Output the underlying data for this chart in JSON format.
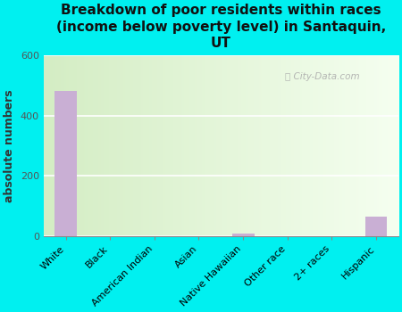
{
  "title": "Breakdown of poor residents within races\n(income below poverty level) in Santaquin,\nUT",
  "ylabel": "absolute numbers",
  "categories": [
    "White",
    "Black",
    "American Indian",
    "Asian",
    "Native Hawaiian",
    "Other race",
    "2+ races",
    "Hispanic"
  ],
  "values": [
    480,
    0,
    0,
    0,
    8,
    0,
    0,
    65
  ],
  "bar_color": "#c9afd4",
  "ylim": [
    0,
    600
  ],
  "yticks": [
    0,
    200,
    400,
    600
  ],
  "background_color": "#00f0f0",
  "plot_bg_color_left": "#d4edc4",
  "plot_bg_color_right": "#f0f5ee",
  "title_fontsize": 11,
  "ylabel_fontsize": 9,
  "tick_fontsize": 8,
  "watermark": "City-Data.com"
}
